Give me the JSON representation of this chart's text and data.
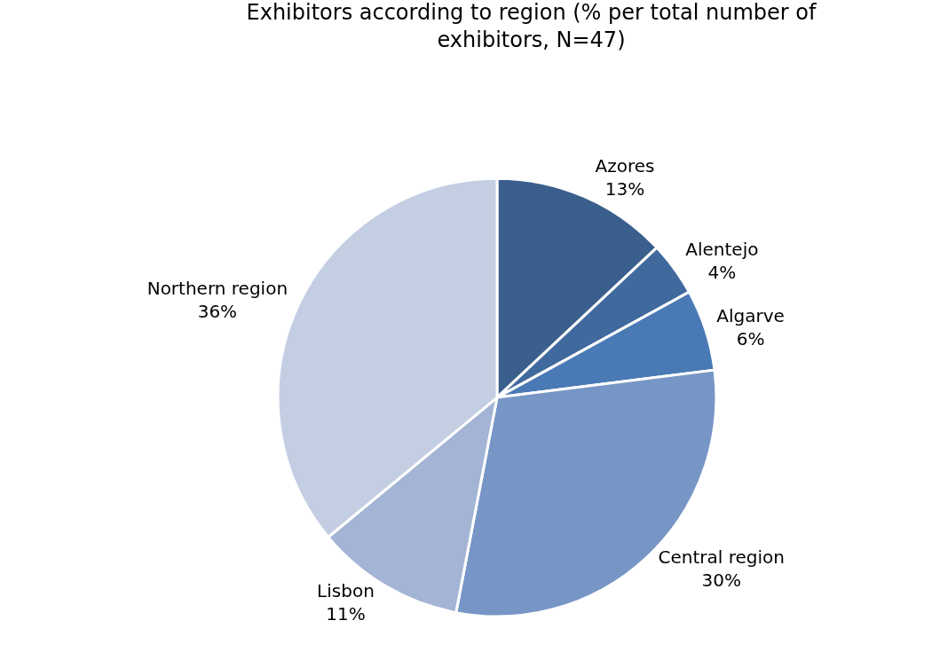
{
  "chart_data": {
    "type": "pie",
    "title": "Exhibitors according to region (% per total number of exhibitors, N=47)",
    "categories": [
      "Azores",
      "Alentejo",
      "Algarve",
      "Central region",
      "Lisbon",
      "Northern region"
    ],
    "values": [
      13,
      4,
      6,
      30,
      11,
      36
    ],
    "value_labels": [
      "13%",
      "4%",
      "6%",
      "30%",
      "11%",
      "36%"
    ],
    "colors": [
      "#3a5f8c",
      "#40699e",
      "#4a7ab5",
      "#7796c6",
      "#a3b4d5",
      "#c3cee3"
    ],
    "legend": false
  }
}
